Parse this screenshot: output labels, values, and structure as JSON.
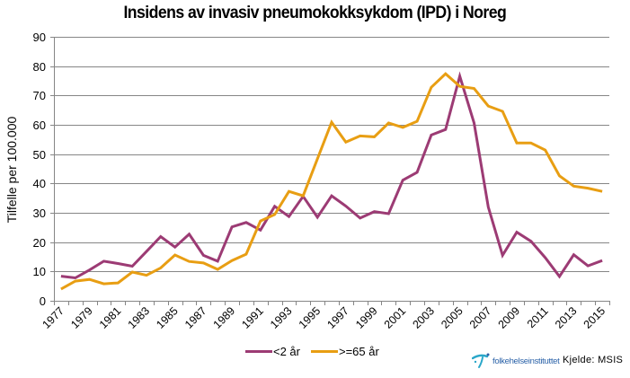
{
  "chart_data": {
    "type": "line",
    "title": "Insidens av invasiv pneumokokksykdom (IPD) i Noreg",
    "xlabel": "",
    "ylabel": "Tilfelle per 100.000",
    "ylim": [
      0,
      90
    ],
    "yticks": [
      "0",
      "10",
      "20",
      "30",
      "40",
      "50",
      "60",
      "70",
      "80",
      "90"
    ],
    "grid": true,
    "legend_position": "bottom",
    "categories": [
      "1977",
      "1978",
      "1979",
      "1980",
      "1981",
      "1982",
      "1983",
      "1984",
      "1985",
      "1986",
      "1987",
      "1988",
      "1989",
      "1990",
      "1991",
      "1992",
      "1993",
      "1994",
      "1995",
      "1996",
      "1997",
      "1998",
      "1999",
      "2000",
      "2001",
      "2002",
      "2003",
      "2004",
      "2005",
      "2006",
      "2007",
      "2008",
      "2009",
      "2010",
      "2011",
      "2012",
      "2013",
      "2014",
      "2015"
    ],
    "xtick_labels": [
      "1977",
      "1979",
      "1981",
      "1983",
      "1985",
      "1987",
      "1989",
      "1991",
      "1993",
      "1995",
      "1997",
      "1999",
      "2001",
      "2003",
      "2005",
      "2007",
      "2009",
      "2011",
      "2013",
      "2015"
    ],
    "series": [
      {
        "name": "<2 år",
        "color": "#9c3b74",
        "values": [
          8.4,
          7.8,
          10.5,
          13.5,
          12.7,
          11.8,
          16.8,
          21.9,
          18.3,
          22.7,
          15.5,
          13.5,
          25.2,
          26.7,
          24.1,
          32.2,
          28.7,
          35.6,
          28.5,
          35.8,
          32.3,
          28.2,
          30.4,
          29.7,
          41.1,
          43.8,
          56.5,
          58.4,
          76.6,
          60.6,
          32.0,
          15.5,
          23.4,
          20.3,
          14.7,
          8.3,
          15.7,
          11.9,
          13.7
        ]
      },
      {
        "name": ">=65 år",
        "color": "#e89e13",
        "values": [
          4.0,
          6.7,
          7.3,
          5.8,
          6.1,
          9.8,
          8.7,
          11.2,
          15.6,
          13.4,
          12.9,
          10.7,
          13.7,
          15.9,
          27.2,
          29.4,
          37.3,
          35.8,
          48.4,
          60.9,
          54.1,
          56.2,
          55.9,
          60.6,
          59.1,
          61.2,
          72.8,
          77.4,
          73.1,
          72.4,
          66.4,
          64.6,
          53.8,
          53.8,
          51.4,
          42.6,
          39.1,
          38.4,
          37.3
        ]
      }
    ]
  },
  "footer": {
    "logo_text": "folkehelseinstituttet",
    "source": "Kjelde: MSIS"
  },
  "style": {
    "grid_color": "#868686",
    "axis_color": "#868686",
    "logo_color": "#2b62a8",
    "logo_accent": "#2aa7c9"
  }
}
